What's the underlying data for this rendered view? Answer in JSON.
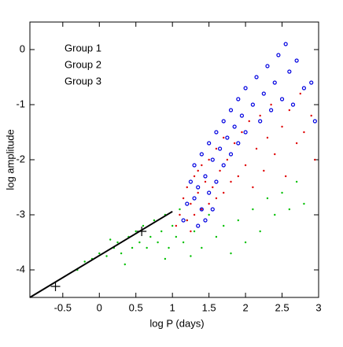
{
  "chart_data": {
    "type": "scatter",
    "x_label": "log P (days)",
    "y_label": "log amplitude",
    "xlim": [
      -0.95,
      3
    ],
    "ylim": [
      -4.5,
      0.5
    ],
    "xticks": [
      -0.5,
      0,
      0.5,
      1,
      1.5,
      2,
      2.5,
      3
    ],
    "yticks": [
      0,
      -1,
      -2,
      -3,
      -4
    ],
    "series": [
      {
        "name": "Group 1",
        "color": "#e00000",
        "marker": "dot",
        "x": [
          1.1,
          1.15,
          1.2,
          1.2,
          1.25,
          1.3,
          1.3,
          1.35,
          1.4,
          1.4,
          1.45,
          1.5,
          1.5,
          1.55,
          1.6,
          1.6,
          1.65,
          1.7,
          1.7,
          1.75,
          1.8,
          1.85,
          1.9,
          1.95,
          2.0,
          2.05,
          2.1,
          2.15,
          2.2,
          2.25,
          2.3,
          2.35,
          2.4,
          2.5,
          2.55,
          2.6,
          2.7,
          2.75,
          2.8,
          2.9,
          2.95,
          1.05,
          1.25,
          1.35
        ],
        "y": [
          -3.0,
          -2.7,
          -3.1,
          -2.5,
          -2.8,
          -2.3,
          -3.0,
          -2.6,
          -2.1,
          -2.9,
          -2.4,
          -2.0,
          -2.8,
          -2.5,
          -1.8,
          -2.7,
          -2.2,
          -1.6,
          -2.6,
          -2.0,
          -2.4,
          -1.7,
          -2.3,
          -1.5,
          -2.1,
          -1.3,
          -2.5,
          -1.8,
          -1.2,
          -2.2,
          -1.6,
          -1.0,
          -1.9,
          -1.4,
          -2.3,
          -1.1,
          -1.7,
          -0.8,
          -1.5,
          -1.2,
          -2.0,
          -3.2,
          -3.3,
          -2.2
        ]
      },
      {
        "name": "Group 2",
        "color": "#00c000",
        "marker": "dot",
        "x": [
          -0.3,
          -0.1,
          0.0,
          0.1,
          0.2,
          0.25,
          0.3,
          0.4,
          0.45,
          0.5,
          0.55,
          0.6,
          0.65,
          0.7,
          0.75,
          0.8,
          0.85,
          0.9,
          0.95,
          1.0,
          1.05,
          1.1,
          1.15,
          1.2,
          1.3,
          1.4,
          1.5,
          1.6,
          1.7,
          1.8,
          1.9,
          2.0,
          2.1,
          2.2,
          2.3,
          2.4,
          2.5,
          2.6,
          2.7,
          2.8,
          0.35,
          0.15,
          -0.2,
          1.25,
          0.9
        ],
        "y": [
          -4.0,
          -3.8,
          -3.7,
          -3.75,
          -3.6,
          -3.5,
          -3.7,
          -3.4,
          -3.6,
          -3.3,
          -3.5,
          -3.2,
          -3.6,
          -3.4,
          -3.1,
          -3.5,
          -3.3,
          -3.0,
          -3.6,
          -3.2,
          -3.4,
          -2.9,
          -3.5,
          -3.1,
          -3.3,
          -3.6,
          -3.0,
          -3.4,
          -3.2,
          -3.7,
          -3.1,
          -3.5,
          -2.9,
          -3.3,
          -2.7,
          -3.0,
          -2.6,
          -2.9,
          -2.4,
          -2.8,
          -3.9,
          -3.45,
          -3.85,
          -3.75,
          -3.8
        ]
      },
      {
        "name": "Group 3",
        "color": "#0000e0",
        "marker": "circle",
        "x": [
          1.15,
          1.2,
          1.25,
          1.3,
          1.3,
          1.35,
          1.4,
          1.4,
          1.45,
          1.5,
          1.5,
          1.55,
          1.6,
          1.6,
          1.65,
          1.7,
          1.7,
          1.75,
          1.8,
          1.8,
          1.85,
          1.9,
          1.9,
          1.95,
          2.0,
          2.0,
          2.1,
          2.15,
          2.2,
          2.25,
          2.3,
          2.35,
          2.4,
          2.45,
          2.5,
          2.55,
          2.6,
          2.65,
          2.7,
          2.8,
          2.9,
          2.95,
          1.35,
          1.55,
          1.45
        ],
        "y": [
          -3.1,
          -2.8,
          -2.4,
          -2.7,
          -2.1,
          -2.5,
          -2.9,
          -1.9,
          -2.3,
          -2.6,
          -1.7,
          -2.0,
          -1.5,
          -2.4,
          -1.8,
          -1.3,
          -2.1,
          -1.6,
          -1.1,
          -1.9,
          -1.4,
          -0.9,
          -1.7,
          -1.2,
          -0.7,
          -1.5,
          -1.0,
          -0.5,
          -1.3,
          -0.8,
          -0.3,
          -1.1,
          -0.6,
          -0.1,
          -0.9,
          0.1,
          -0.4,
          -1.0,
          -0.2,
          -0.7,
          -0.6,
          -1.3,
          -3.2,
          -2.9,
          -3.1
        ]
      }
    ],
    "fit_line": {
      "color": "#000000",
      "x": [
        -0.95,
        1
      ],
      "y": [
        -4.5,
        -2.94
      ]
    },
    "crosses": {
      "color": "#000000",
      "x": [
        -0.6,
        0.58
      ],
      "y": [
        -4.3,
        -3.3
      ]
    }
  }
}
